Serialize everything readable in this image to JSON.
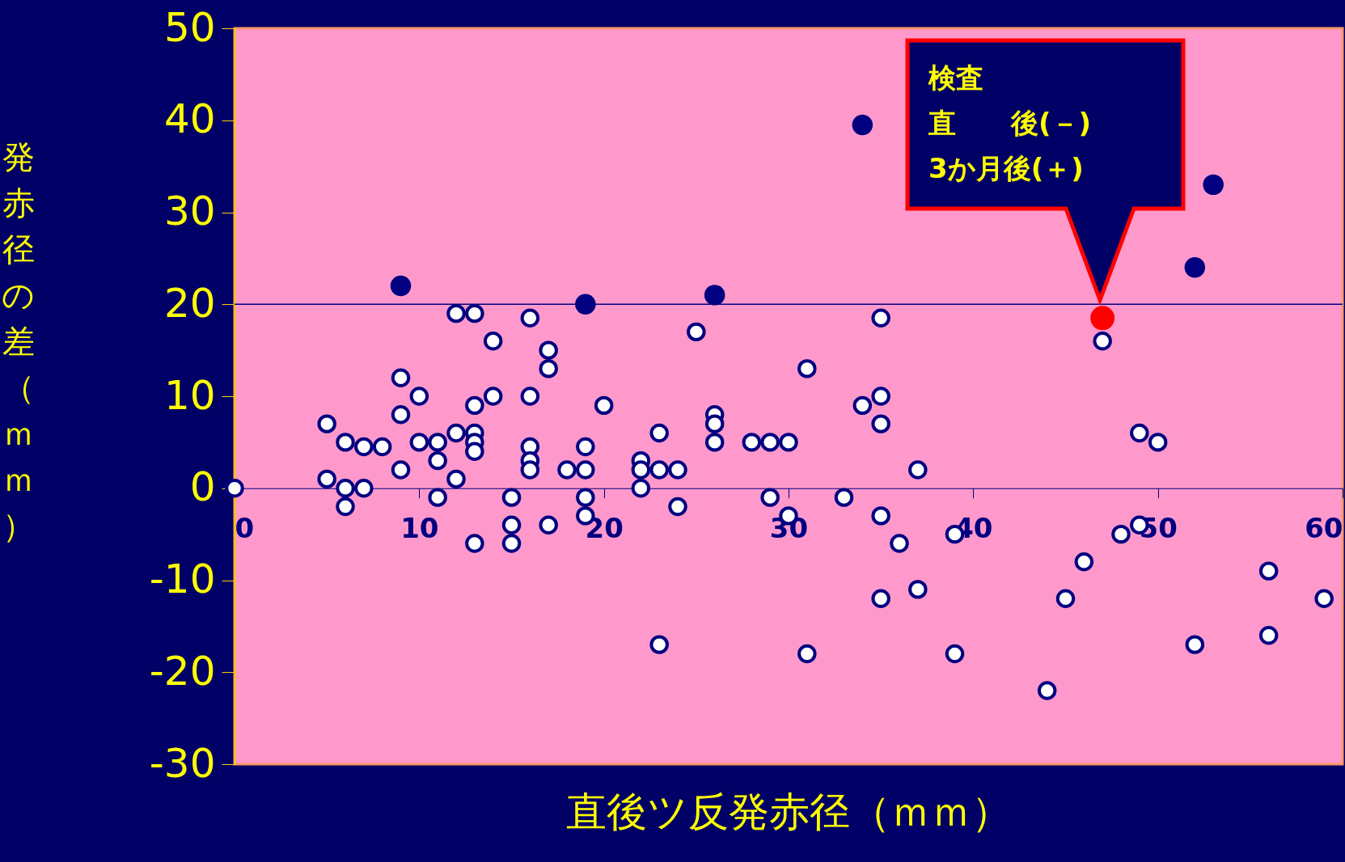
{
  "chart_data": {
    "type": "scatter",
    "xlabel": "直後ツ反発赤径（ｍｍ）",
    "ylabel": "発赤径の差（ｍｍ）",
    "xlim": [
      0,
      60
    ],
    "ylim": [
      -30,
      50
    ],
    "xticks": [
      0,
      10,
      20,
      30,
      40,
      50,
      60
    ],
    "yticks": [
      -30,
      -20,
      -10,
      0,
      10,
      20,
      30,
      40,
      50
    ],
    "grid": false,
    "ref_lines": [
      {
        "axis": "y",
        "value": 20,
        "color": "#000080"
      }
    ],
    "annotations": [
      "検査",
      "直　　後(－)",
      "3か月後(＋)"
    ],
    "series": [
      {
        "color": "#ffffff",
        "x": [
          0,
          5,
          5,
          6,
          6,
          6,
          7,
          7,
          8,
          9,
          9,
          9,
          10,
          10,
          11,
          11,
          11,
          12,
          12,
          12,
          13,
          13,
          13,
          13,
          13,
          13,
          14,
          14,
          15,
          15,
          15,
          16,
          16,
          16,
          16,
          16,
          17,
          17,
          17,
          18,
          19,
          19,
          19,
          19,
          20,
          22,
          22,
          22,
          23,
          23,
          23,
          24,
          24,
          25,
          26,
          26,
          26,
          28,
          29,
          29,
          30,
          30,
          31,
          31,
          33,
          34,
          35,
          35,
          35,
          35,
          35,
          36,
          37,
          37,
          39,
          39,
          44,
          45,
          46,
          47,
          48,
          49,
          49,
          50,
          52,
          56,
          56,
          59
        ],
        "values": [
          0,
          7,
          1,
          5,
          0,
          -2,
          4.5,
          0,
          4.5,
          12,
          8,
          2,
          10,
          5,
          5,
          3,
          -1,
          19,
          6,
          1,
          19,
          9,
          6,
          5,
          4,
          -6,
          16,
          10,
          -1,
          -4,
          -6,
          18.5,
          10,
          4.5,
          3,
          2,
          15,
          13,
          -4,
          2,
          4.5,
          2,
          -1,
          -3,
          9,
          3,
          2,
          0,
          6,
          2,
          -17,
          2,
          -2,
          17,
          8,
          7,
          5,
          5,
          5,
          -1,
          5,
          -3,
          13,
          -18,
          -1,
          9,
          18.5,
          10,
          7,
          -3,
          -12,
          -6,
          2,
          -11,
          -5,
          -18,
          -22,
          -12,
          -8,
          16,
          -5,
          6,
          -4,
          5,
          -17,
          -9,
          -16,
          -12
        ]
      },
      {
        "color": "#000080",
        "x": [
          9,
          19,
          26,
          34,
          52,
          53
        ],
        "values": [
          22,
          20,
          21,
          39.5,
          24,
          33
        ]
      },
      {
        "color": "#ff0000",
        "x": [
          47
        ],
        "values": [
          18.5
        ]
      }
    ]
  }
}
